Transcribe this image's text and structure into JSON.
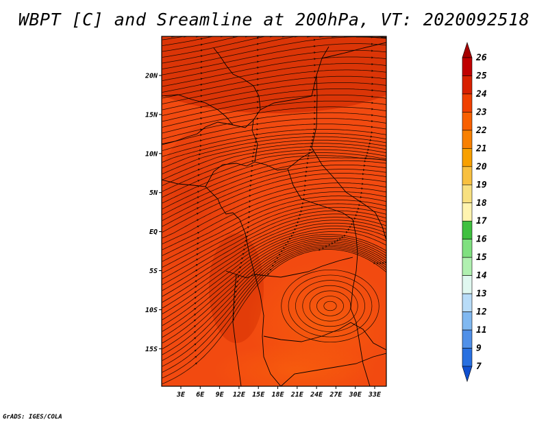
{
  "title": "WBPT [C] and Sreamline at 200hPa, VT: 2020092518",
  "footer": "GrADS: IGES/COLA",
  "map": {
    "lat_ticks": [
      "20N",
      "15N",
      "10N",
      "5N",
      "EQ",
      "5S",
      "10S",
      "15S"
    ],
    "lon_ticks": [
      "3E",
      "6E",
      "9E",
      "12E",
      "15E",
      "18E",
      "21E",
      "24E",
      "27E",
      "30E",
      "33E"
    ],
    "field_color": "#f24a10",
    "field_color_dark": "#d42c04",
    "field_color_light": "#f8610c",
    "streamline_color": "#1a0a00"
  },
  "colorbar": {
    "labels": [
      "26",
      "25",
      "24",
      "23",
      "22",
      "21",
      "20",
      "19",
      "18",
      "17",
      "16",
      "15",
      "14",
      "13",
      "12",
      "11",
      "9",
      "7"
    ],
    "colors": [
      "#a50000",
      "#c00000",
      "#d82000",
      "#f04000",
      "#f86000",
      "#f88000",
      "#f8a000",
      "#f8c040",
      "#f8e080",
      "#fff4b0",
      "#40c040",
      "#80e080",
      "#b0f0b0",
      "#e0f8f0",
      "#b8dcf8",
      "#80b8f0",
      "#5090e8",
      "#2870e0",
      "#1050d0"
    ]
  }
}
